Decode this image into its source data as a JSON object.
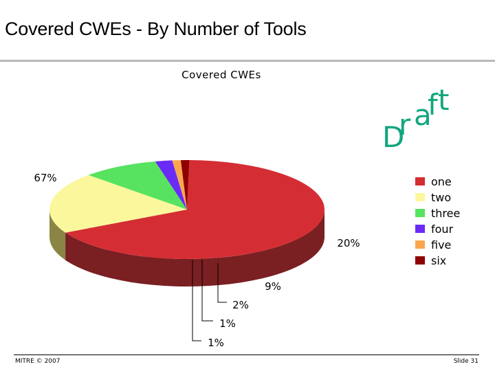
{
  "slide": {
    "title": "Covered CWEs - By Number of Tools",
    "watermark": "Draft",
    "footer_left": "MITRE © 2007",
    "footer_right": "Slide 31"
  },
  "colors": {
    "watermark": "#11a67e",
    "leader_line": "#000000"
  },
  "chart_data": {
    "type": "pie",
    "style": "3d",
    "title": "Covered CWEs",
    "legend_position": "right",
    "slices": [
      {
        "name": "one",
        "value": 67,
        "label": "67%",
        "color": "#d42e34",
        "side": "#7a1f22"
      },
      {
        "name": "two",
        "value": 20,
        "label": "20%",
        "color": "#fbf79c",
        "side": "#8a8544"
      },
      {
        "name": "three",
        "value": 9,
        "label": "9%",
        "color": "#57e35f",
        "side": "#277a32"
      },
      {
        "name": "four",
        "value": 2,
        "label": "2%",
        "color": "#6b2bf7",
        "side": "#2e1878"
      },
      {
        "name": "five",
        "value": 1,
        "label": "1%",
        "color": "#fba64f",
        "side": "#8d6930"
      },
      {
        "name": "six",
        "value": 1,
        "label": "1%",
        "color": "#8f0000",
        "side": "#400808"
      }
    ]
  }
}
